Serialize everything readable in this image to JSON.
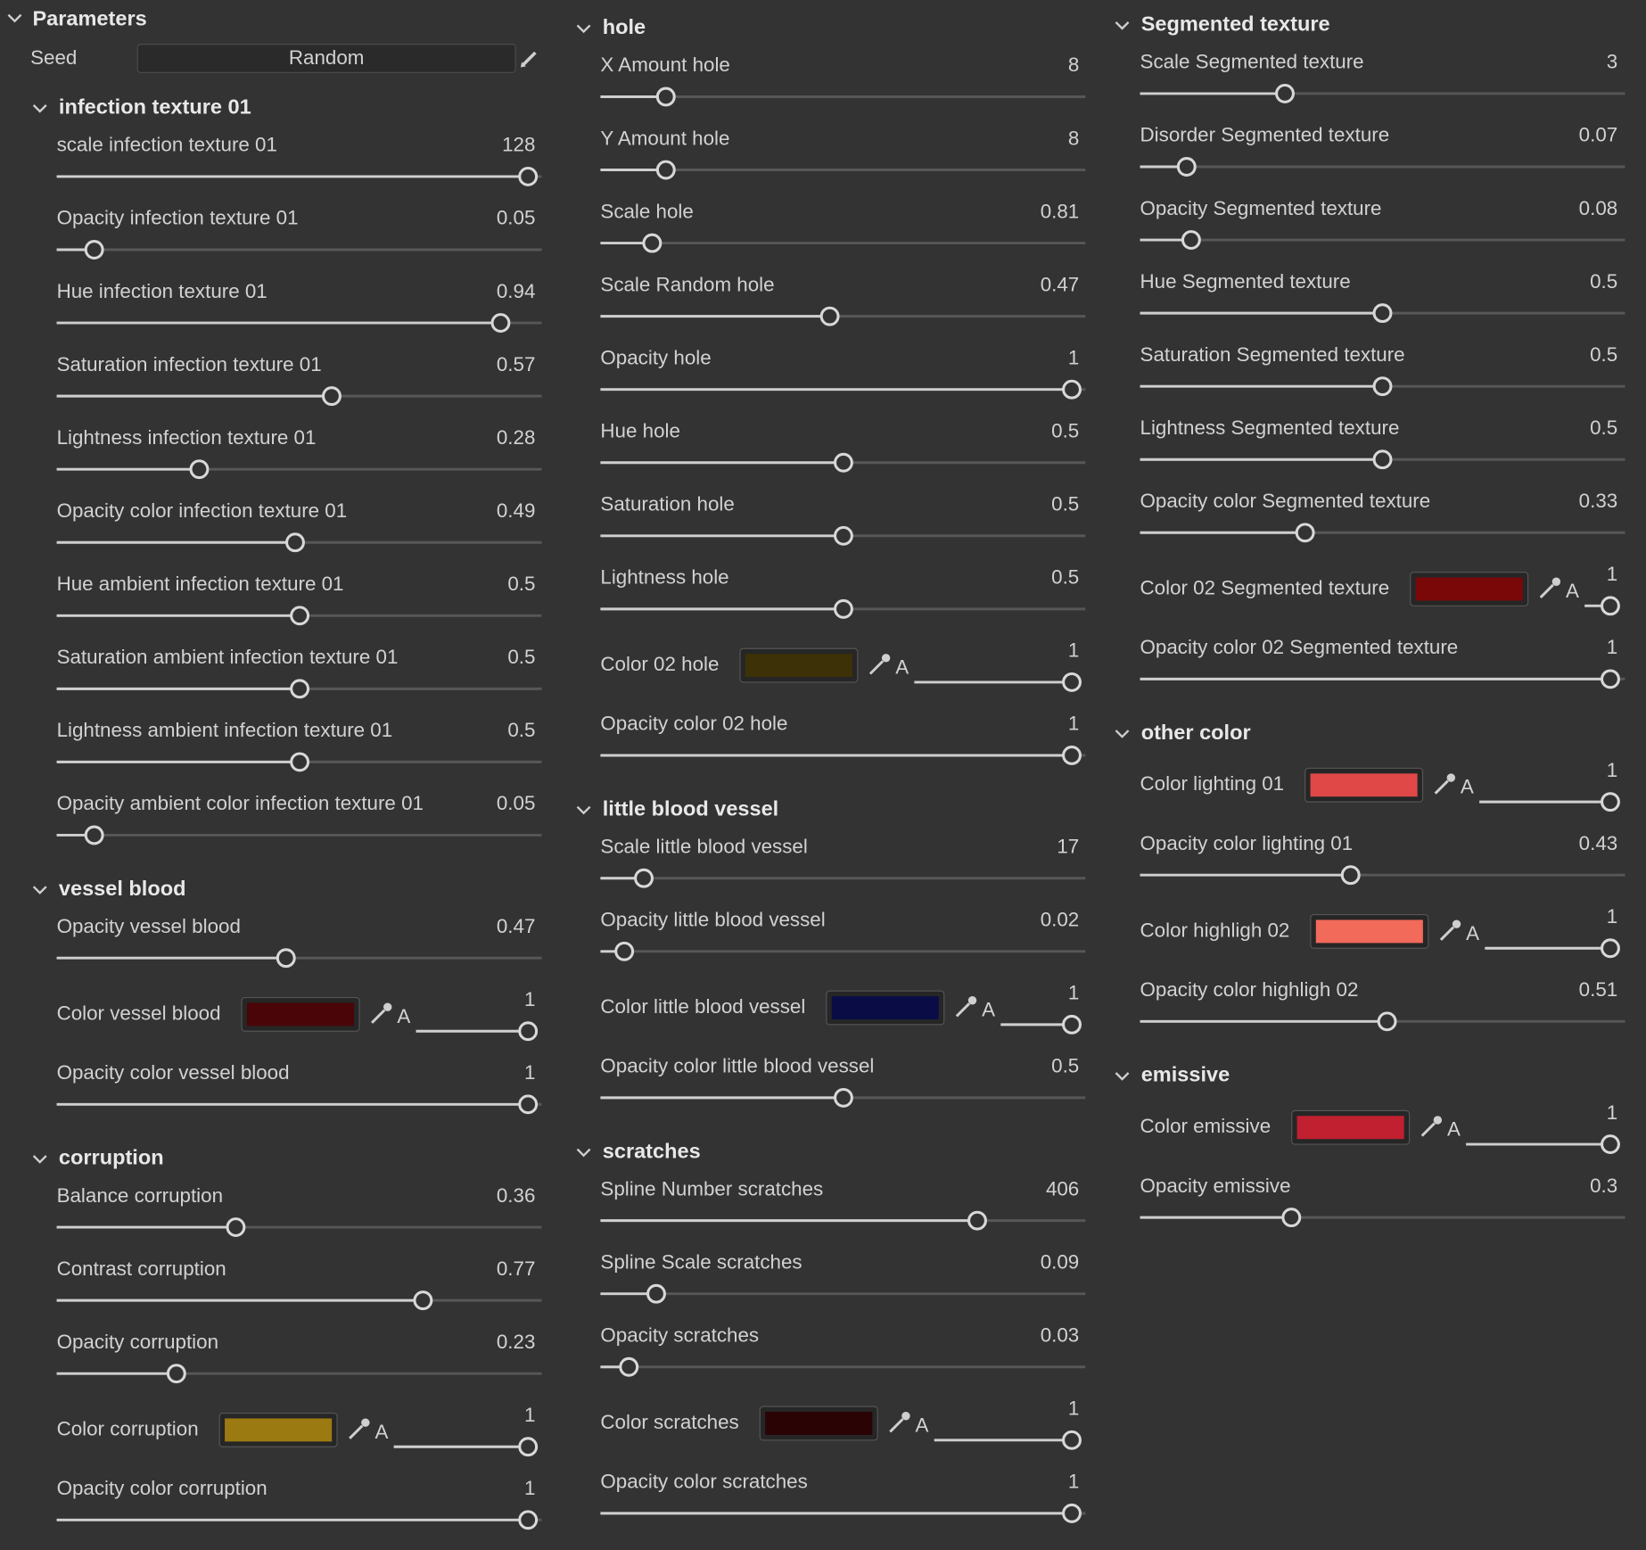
{
  "header": {
    "title": "Parameters",
    "seed_label": "Seed",
    "seed_button": "Random"
  },
  "columns": [
    {
      "sections": [
        {
          "title": "infection texture 01",
          "items": [
            {
              "label": "scale infection texture 01",
              "value": "128"
            },
            {
              "label": "Opacity infection texture 01",
              "value": "0.05"
            },
            {
              "label": "Hue infection texture 01",
              "value": "0.94"
            },
            {
              "label": "Saturation infection texture 01",
              "value": "0.57"
            },
            {
              "label": "Lightness infection texture 01",
              "value": "0.28"
            },
            {
              "label": "Opacity color infection texture 01",
              "value": "0.49"
            },
            {
              "label": "Hue ambient infection texture 01",
              "value": "0.5"
            },
            {
              "label": "Saturation ambient infection texture 01",
              "value": "0.5"
            },
            {
              "label": "Lightness ambient infection texture 01",
              "value": "0.5"
            },
            {
              "label": "Opacity ambient color infection texture 01",
              "value": "0.05"
            }
          ]
        },
        {
          "title": "vessel blood",
          "items": [
            {
              "label": "Opacity vessel blood",
              "value": "0.47"
            },
            {
              "label": "Color vessel blood",
              "color": "#4a0508",
              "alpha_label": "A",
              "value": "1"
            },
            {
              "label": "Opacity color vessel blood",
              "value": "1"
            }
          ]
        },
        {
          "title": "corruption",
          "items": [
            {
              "label": "Balance corruption",
              "value": "0.36"
            },
            {
              "label": "Contrast corruption",
              "value": "0.77"
            },
            {
              "label": "Opacity corruption",
              "value": "0.23"
            },
            {
              "label": "Color corruption",
              "color": "#9c7a12",
              "alpha_label": "A",
              "value": "1"
            },
            {
              "label": "Opacity color corruption",
              "value": "1"
            }
          ]
        }
      ]
    },
    {
      "sections": [
        {
          "title": "hole",
          "items": [
            {
              "label": "X Amount hole",
              "value": "8"
            },
            {
              "label": "Y Amount hole",
              "value": "8"
            },
            {
              "label": "Scale hole",
              "value": "0.81"
            },
            {
              "label": "Scale Random hole",
              "value": "0.47"
            },
            {
              "label": "Opacity hole",
              "value": "1"
            },
            {
              "label": "Hue hole",
              "value": "0.5"
            },
            {
              "label": "Saturation hole",
              "value": "0.5"
            },
            {
              "label": "Lightness hole",
              "value": "0.5"
            },
            {
              "label": "Color 02 hole",
              "color": "#3d3108",
              "alpha_label": "A",
              "value": "1"
            },
            {
              "label": "Opacity color 02 hole",
              "value": "1"
            }
          ]
        },
        {
          "title": "little blood vessel",
          "items": [
            {
              "label": "Scale little blood vessel",
              "value": "17"
            },
            {
              "label": "Opacity little blood vessel",
              "value": "0.02"
            },
            {
              "label": "Color little blood vessel",
              "color": "#0a0c45",
              "alpha_label": "A",
              "value": "1"
            },
            {
              "label": "Opacity color little blood vessel",
              "value": "0.5"
            }
          ]
        },
        {
          "title": "scratches",
          "items": [
            {
              "label": "Spline Number scratches",
              "value": "406"
            },
            {
              "label": "Spline Scale scratches",
              "value": "0.09"
            },
            {
              "label": "Opacity scratches",
              "value": "0.03"
            },
            {
              "label": "Color scratches",
              "color": "#2a0305",
              "alpha_label": "A",
              "value": "1"
            },
            {
              "label": "Opacity color scratches",
              "value": "1"
            }
          ]
        }
      ]
    },
    {
      "sections": [
        {
          "title": "Segmented texture",
          "items": [
            {
              "label": "Scale Segmented texture",
              "value": "3"
            },
            {
              "label": "Disorder Segmented texture",
              "value": "0.07"
            },
            {
              "label": "Opacity Segmented texture",
              "value": "0.08"
            },
            {
              "label": "Hue Segmented texture",
              "value": "0.5"
            },
            {
              "label": "Saturation Segmented texture",
              "value": "0.5"
            },
            {
              "label": "Lightness Segmented texture",
              "value": "0.5"
            },
            {
              "label": "Opacity color Segmented texture",
              "value": "0.33"
            },
            {
              "label": "Color 02 Segmented texture",
              "color": "#7a0808",
              "alpha_label": "A",
              "value": "1"
            },
            {
              "label": "Opacity color 02 Segmented texture",
              "value": "1"
            }
          ]
        },
        {
          "title": "other color",
          "items": [
            {
              "label": "Color lighting 01",
              "color": "#e04848",
              "alpha_label": "A",
              "value": "1"
            },
            {
              "label": "Opacity color lighting 01",
              "value": "0.43"
            },
            {
              "label": "Color highligh 02",
              "color": "#f26a5a",
              "alpha_label": "A",
              "value": "1"
            },
            {
              "label": "Opacity color highligh 02",
              "value": "0.51"
            }
          ]
        },
        {
          "title": "emissive",
          "items": [
            {
              "label": "Color emissive",
              "color": "#c0202f",
              "alpha_label": "A",
              "value": "1"
            },
            {
              "label": "Opacity emissive",
              "value": "0.3"
            }
          ]
        }
      ]
    }
  ]
}
